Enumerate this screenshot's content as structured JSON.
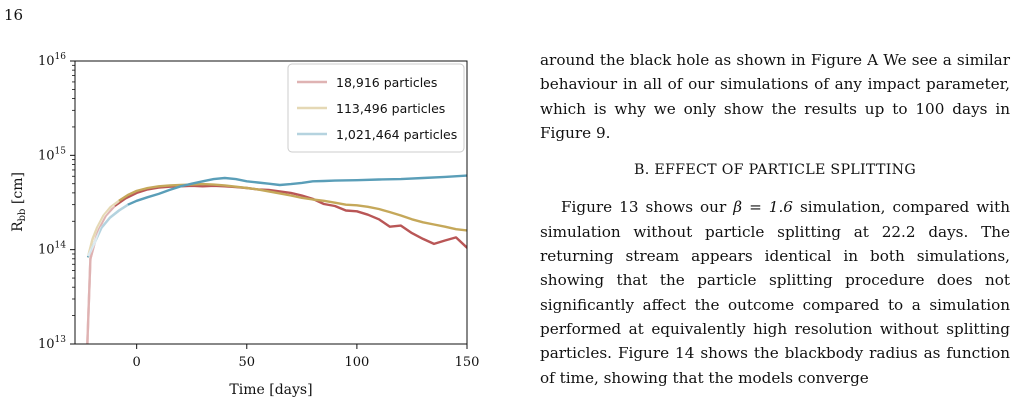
{
  "page_number": "16",
  "colors": {
    "series_18916": "#b95656",
    "series_113496": "#c5a85a",
    "series_1021464": "#5a9eb8",
    "link": "#2a3f9e"
  },
  "chart_data": {
    "type": "line",
    "y_scale": "log",
    "xlabel": "Time [days]",
    "ylabel": "R_bb [cm]",
    "xlim": [
      -28,
      150
    ],
    "ylim": [
      10000000000000.0,
      1e+16
    ],
    "x_ticks": [
      "0",
      "50",
      "100",
      "150"
    ],
    "y_ticks": [
      "10^13",
      "10^14",
      "10^15",
      "10^16"
    ],
    "legend_position": "top-right",
    "series": [
      {
        "name": "18,916 particles",
        "color": "#b95656",
        "x": [
          -22.5,
          -21,
          -19,
          -17,
          -14,
          -10,
          -5,
          0,
          5,
          10,
          15,
          20,
          25,
          30,
          35,
          40,
          45,
          50,
          55,
          60,
          65,
          70,
          75,
          80,
          85,
          90,
          95,
          100,
          105,
          110,
          115,
          120,
          125,
          130,
          135,
          140,
          145,
          150
        ],
        "y": [
          8500000000000.0,
          80000000000000.0,
          120000000000000.0,
          170000000000000.0,
          230000000000000.0,
          290000000000000.0,
          350000000000000.0,
          400000000000000.0,
          435000000000000.0,
          455000000000000.0,
          465000000000000.0,
          470000000000000.0,
          475000000000000.0,
          470000000000000.0,
          475000000000000.0,
          470000000000000.0,
          460000000000000.0,
          450000000000000.0,
          435000000000000.0,
          430000000000000.0,
          415000000000000.0,
          400000000000000.0,
          375000000000000.0,
          345000000000000.0,
          305000000000000.0,
          290000000000000.0,
          260000000000000.0,
          255000000000000.0,
          235000000000000.0,
          210000000000000.0,
          175000000000000.0,
          180000000000000.0,
          150000000000000.0,
          130000000000000.0,
          115000000000000.0,
          125000000000000.0,
          135000000000000.0,
          105000000000000.0
        ],
        "opacity": 0.35
      },
      {
        "name": "113,496 particles",
        "color": "#c5a85a",
        "x": [
          -22,
          -20,
          -18,
          -15,
          -12,
          -8,
          -4,
          0,
          5,
          10,
          15,
          20,
          25,
          30,
          35,
          40,
          45,
          50,
          55,
          60,
          65,
          70,
          75,
          80,
          85,
          90,
          95,
          100,
          105,
          110,
          115,
          120,
          125,
          130,
          135,
          140,
          145,
          150
        ],
        "y": [
          85000000000000.0,
          130000000000000.0,
          170000000000000.0,
          230000000000000.0,
          280000000000000.0,
          330000000000000.0,
          380000000000000.0,
          420000000000000.0,
          450000000000000.0,
          470000000000000.0,
          480000000000000.0,
          485000000000000.0,
          490000000000000.0,
          495000000000000.0,
          490000000000000.0,
          480000000000000.0,
          465000000000000.0,
          450000000000000.0,
          435000000000000.0,
          415000000000000.0,
          395000000000000.0,
          375000000000000.0,
          355000000000000.0,
          340000000000000.0,
          330000000000000.0,
          315000000000000.0,
          300000000000000.0,
          295000000000000.0,
          285000000000000.0,
          270000000000000.0,
          250000000000000.0,
          230000000000000.0,
          210000000000000.0,
          195000000000000.0,
          185000000000000.0,
          175000000000000.0,
          165000000000000.0,
          160000000000000.0
        ]
      },
      {
        "name": "1,021,464 particles",
        "color": "#5a9eb8",
        "x": [
          -22,
          -19,
          -16,
          -12,
          -8,
          -4,
          0,
          5,
          10,
          15,
          20,
          25,
          30,
          35,
          40,
          45,
          50,
          55,
          60,
          65,
          70,
          75,
          80,
          85,
          90,
          100,
          110,
          120,
          130,
          140,
          150
        ],
        "y": [
          85000000000000.0,
          120000000000000.0,
          170000000000000.0,
          220000000000000.0,
          260000000000000.0,
          300000000000000.0,
          330000000000000.0,
          360000000000000.0,
          390000000000000.0,
          430000000000000.0,
          470000000000000.0,
          500000000000000.0,
          530000000000000.0,
          560000000000000.0,
          575000000000000.0,
          560000000000000.0,
          530000000000000.0,
          515000000000000.0,
          500000000000000.0,
          485000000000000.0,
          495000000000000.0,
          510000000000000.0,
          530000000000000.0,
          535000000000000.0,
          540000000000000.0,
          545000000000000.0,
          555000000000000.0,
          560000000000000.0,
          575000000000000.0,
          590000000000000.0,
          610000000000000.0
        ]
      }
    ]
  },
  "text": {
    "para1": "around the black hole as shown in Figure A We see a similar behaviour in all of our simulations of any impact parameter, which is why we only show the results up to 100 days in Figure 9.",
    "section_heading": "B. EFFECT OF PARTICLE SPLITTING",
    "para2_a": "Figure 13 shows our",
    "para2_math": "β = 1.6",
    "para2_b": "simulation, compared with simulation without particle splitting at 22.2 days. The returning stream appears identical in both simulations, showing that the particle splitting procedure does not significantly affect the outcome compared to a simulation performed at equivalently high resolution without splitting particles. Figure 14 shows the blackbody radius as function of time, showing that the models converge"
  }
}
